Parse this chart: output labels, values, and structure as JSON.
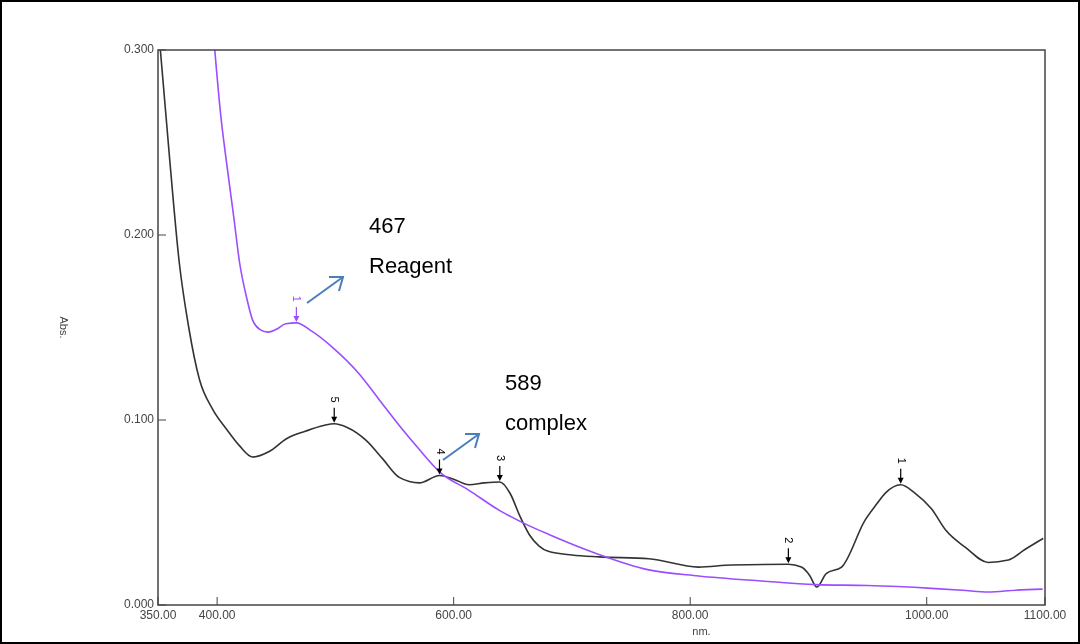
{
  "chart_data": {
    "type": "line",
    "xlabel": "nm.",
    "ylabel": "Abs.",
    "xlim": [
      350,
      1100
    ],
    "ylim": [
      0,
      0.3
    ],
    "xticks": [
      {
        "value": 350,
        "label": "350.00"
      },
      {
        "value": 400,
        "label": "400.00"
      },
      {
        "value": 600,
        "label": "600.00"
      },
      {
        "value": 800,
        "label": "800.00"
      },
      {
        "value": 1000,
        "label": "1000.00"
      },
      {
        "value": 1100,
        "label": "1100.00"
      }
    ],
    "yticks": [
      {
        "value": 0,
        "label": "0.000"
      },
      {
        "value": 0.1,
        "label": "0.100"
      },
      {
        "value": 0.2,
        "label": "0.200"
      },
      {
        "value": 0.3,
        "label": "0.300"
      }
    ],
    "grid": false,
    "marker": "none",
    "line_style": "solid",
    "series": [
      {
        "color": "#333333",
        "x": [
          352,
          360,
          368,
          376,
          385,
          396,
          408,
          419,
          430,
          444,
          459,
          475,
          490,
          499,
          510,
          526,
          540,
          554,
          571,
          588,
          600,
          613,
          626,
          639,
          648,
          656,
          664,
          672,
          680,
          700,
          723,
          765,
          807,
          835,
          883,
          894,
          901,
          907,
          915,
          928,
          948,
          957,
          965,
          978,
          990,
          1004,
          1016,
          1033,
          1052,
          1069,
          1083,
          1098.5
        ],
        "values": [
          0.3,
          0.24,
          0.185,
          0.15,
          0.122,
          0.106,
          0.095,
          0.086,
          0.08,
          0.083,
          0.09,
          0.094,
          0.097,
          0.098,
          0.096,
          0.089,
          0.079,
          0.069,
          0.066,
          0.07,
          0.068,
          0.065,
          0.066,
          0.0665,
          0.06,
          0.048,
          0.038,
          0.032,
          0.029,
          0.027,
          0.026,
          0.025,
          0.0205,
          0.0216,
          0.022,
          0.0205,
          0.016,
          0.0097,
          0.017,
          0.0205,
          0.046,
          0.054,
          0.0605,
          0.065,
          0.0605,
          0.052,
          0.0405,
          0.031,
          0.023,
          0.0243,
          0.03,
          0.036
        ]
      },
      {
        "color": "#9b4dff",
        "x": [
          398,
          403,
          408,
          414,
          419,
          425,
          430,
          436,
          443,
          450,
          458,
          467,
          480,
          498,
          520,
          537,
          554,
          571,
          588,
          613,
          639,
          660,
          681,
          720,
          765,
          807,
          860,
          906,
          950,
          1004,
          1030,
          1052,
          1075,
          1098
        ],
        "values": [
          0.3,
          0.265,
          0.239,
          0.21,
          0.185,
          0.166,
          0.154,
          0.149,
          0.1475,
          0.149,
          0.152,
          0.1525,
          0.148,
          0.139,
          0.125,
          0.111,
          0.097,
          0.084,
          0.072,
          0.062,
          0.051,
          0.044,
          0.038,
          0.028,
          0.019,
          0.0157,
          0.013,
          0.011,
          0.0105,
          0.009,
          0.008,
          0.007,
          0.008,
          0.0086
        ]
      }
    ],
    "annotations": [
      "467 Reagent",
      "589 complex",
      {
        "text": "1",
        "x": 467,
        "y": 0.1525
      },
      {
        "text": "5",
        "x": 499,
        "y": 0.098
      },
      {
        "text": "4",
        "x": 588,
        "y": 0.07
      },
      {
        "text": "3",
        "x": 639,
        "y": 0.0665
      },
      {
        "text": "2",
        "x": 883,
        "y": 0.022
      },
      {
        "text": "1",
        "x": 978,
        "y": 0.065
      }
    ]
  }
}
